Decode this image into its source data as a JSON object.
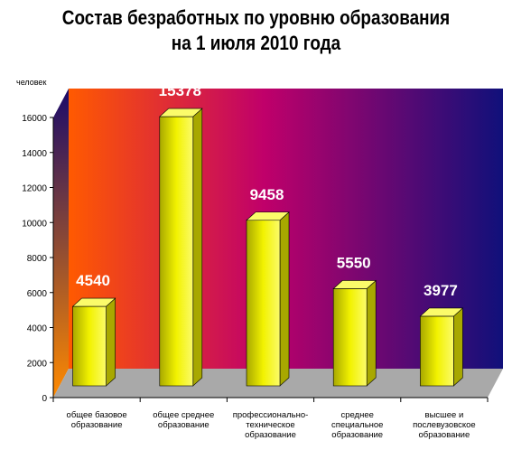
{
  "chart_data": {
    "type": "bar",
    "title": [
      "Состав безработных по уровню образования",
      "на 1 июля 2010 года"
    ],
    "ylabel": "человек",
    "xlabel": "",
    "ylim": [
      0,
      16000
    ],
    "yticks": [
      0,
      2000,
      4000,
      6000,
      8000,
      10000,
      12000,
      14000,
      16000
    ],
    "grid": false,
    "legend": "none",
    "bar_style": "3d",
    "categories": [
      [
        "общее базовое",
        "образование"
      ],
      [
        "общее среднее",
        "образование"
      ],
      [
        "профессионально-",
        "техническое",
        "образование"
      ],
      [
        "среднее",
        "специальное",
        "образование"
      ],
      [
        "высшее и",
        "послевузовское",
        "образование"
      ]
    ],
    "values": [
      4540,
      15378,
      9458,
      5550,
      3977
    ],
    "data_labels": [
      "4540",
      "15378",
      "9458",
      "5550",
      "3977"
    ],
    "colors": {
      "bar_front": "#f2f200",
      "bar_top": "#fbfb6a",
      "bar_side": "#a8a800",
      "floor": "#a9a9a9",
      "wall_left": "#ff5a00",
      "wall_mid": "#c0006a",
      "wall_right": "#10107a",
      "data_label": "#ffffff"
    }
  }
}
